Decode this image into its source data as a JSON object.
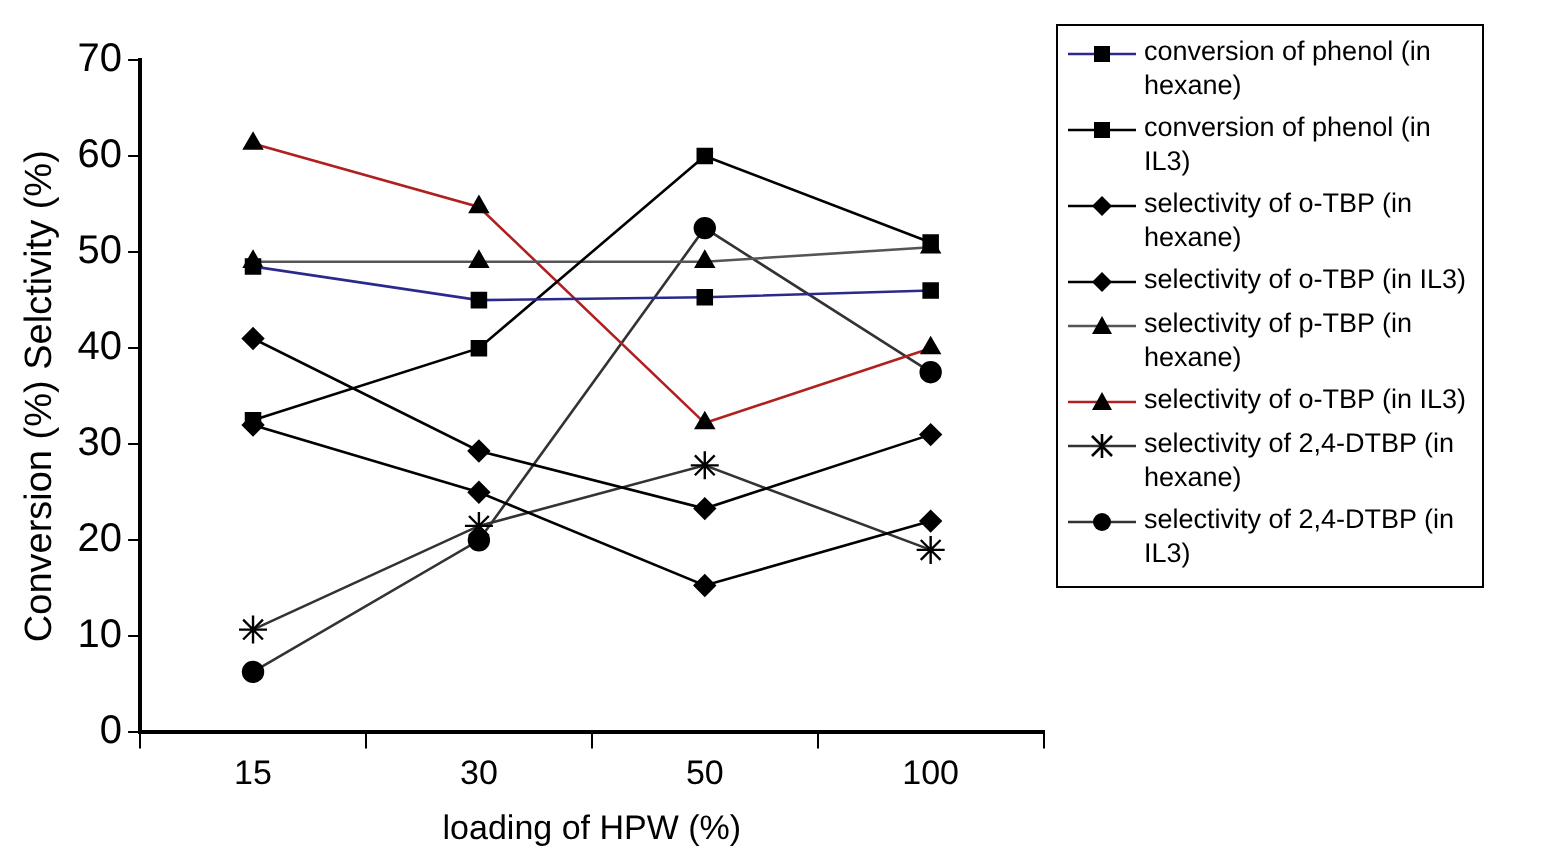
{
  "chart_data": {
    "type": "line",
    "xlabel": "loading of HPW (%)",
    "ylabel": "Conversion (%) Selctivity (%)",
    "categories": [
      "15",
      "30",
      "50",
      "100"
    ],
    "ylim": [
      0,
      70
    ],
    "yticks": [
      0,
      10,
      20,
      30,
      40,
      50,
      60,
      70
    ],
    "grid": false,
    "legend": "right",
    "series": [
      {
        "name": "conversion of phenol (in hexane)",
        "color": "#2a2a8c",
        "marker": "square",
        "values": [
          48.5,
          45,
          45.3,
          46
        ]
      },
      {
        "name": "conversion of phenol (in IL3)",
        "color": "#000000",
        "marker": "square",
        "values": [
          32.5,
          40,
          60,
          51
        ]
      },
      {
        "name": "selectivity of o-TBP (in hexane)",
        "color": "#000000",
        "marker": "diamond",
        "values": [
          41,
          29.3,
          23.3,
          31
        ]
      },
      {
        "name": "selectivity of o-TBP (in IL3)",
        "color": "#000000",
        "marker": "diamond",
        "values": [
          32,
          25,
          15.3,
          22
        ]
      },
      {
        "name": "selectivity of p-TBP (in hexane)",
        "color": "#555555",
        "marker": "triangle",
        "values": [
          49,
          49,
          49,
          50.5
        ]
      },
      {
        "name": "selectivity of o-TBP (in IL3)",
        "color": "#b02020",
        "marker": "triangle",
        "values": [
          61.3,
          54.7,
          32.2,
          40
        ]
      },
      {
        "name": "selectivity of 2,4-DTBP (in hexane)",
        "color": "#333333",
        "marker": "cross",
        "values": [
          10.7,
          21.5,
          27.8,
          19
        ]
      },
      {
        "name": "selectivity of 2,4-DTBP (in IL3)",
        "color": "#333333",
        "marker": "circle",
        "values": [
          6.3,
          20,
          52.5,
          37.5
        ]
      }
    ]
  }
}
